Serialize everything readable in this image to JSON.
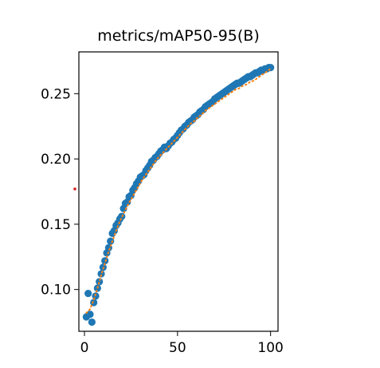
{
  "chart_data": {
    "type": "scatter",
    "title": "metrics/mAP50-95(B)",
    "xlabel": "",
    "ylabel": "",
    "xlim": [
      -3,
      104
    ],
    "ylim": [
      0.068,
      0.282
    ],
    "x_ticks": [
      0,
      50,
      100
    ],
    "y_ticks": [
      0.1,
      0.15,
      0.2,
      0.25
    ],
    "grid": false,
    "legend": "none",
    "colors": {
      "points": "#1f77b4",
      "smooth": "#ff7f0e",
      "marker": "#d62728"
    },
    "series": [
      {
        "style": "markers",
        "x": [
          1,
          2,
          3,
          4,
          5,
          6,
          7,
          8,
          9,
          10,
          11,
          12,
          13,
          14,
          15,
          16,
          17,
          18,
          19,
          20,
          21,
          22,
          23,
          24,
          25,
          26,
          27,
          28,
          29,
          30,
          31,
          32,
          33,
          34,
          35,
          36,
          37,
          38,
          39,
          40,
          41,
          42,
          43,
          44,
          45,
          46,
          47,
          48,
          49,
          50,
          51,
          52,
          53,
          54,
          55,
          56,
          57,
          58,
          59,
          60,
          61,
          62,
          63,
          64,
          65,
          66,
          67,
          68,
          69,
          70,
          71,
          72,
          73,
          74,
          75,
          76,
          77,
          78,
          79,
          80,
          81,
          82,
          83,
          84,
          85,
          86,
          87,
          88,
          89,
          90,
          91,
          92,
          93,
          94,
          95,
          96,
          97,
          98,
          99,
          100
        ],
        "y": [
          0.079,
          0.097,
          0.081,
          0.075,
          0.09,
          0.095,
          0.101,
          0.106,
          0.112,
          0.117,
          0.122,
          0.128,
          0.132,
          0.137,
          0.143,
          0.145,
          0.149,
          0.151,
          0.154,
          0.156,
          0.162,
          0.166,
          0.167,
          0.171,
          0.172,
          0.176,
          0.178,
          0.181,
          0.183,
          0.186,
          0.187,
          0.188,
          0.191,
          0.193,
          0.195,
          0.198,
          0.199,
          0.201,
          0.202,
          0.204,
          0.206,
          0.207,
          0.209,
          0.208,
          0.21,
          0.212,
          0.213,
          0.215,
          0.216,
          0.218,
          0.22,
          0.222,
          0.223,
          0.225,
          0.226,
          0.228,
          0.229,
          0.23,
          0.232,
          0.233,
          0.234,
          0.236,
          0.237,
          0.238,
          0.24,
          0.241,
          0.242,
          0.243,
          0.244,
          0.246,
          0.247,
          0.248,
          0.249,
          0.25,
          0.251,
          0.252,
          0.253,
          0.254,
          0.255,
          0.256,
          0.257,
          0.258,
          0.258,
          0.259,
          0.26,
          0.261,
          0.262,
          0.263,
          0.263,
          0.264,
          0.265,
          0.266,
          0.266,
          0.267,
          0.268,
          0.268,
          0.269,
          0.269,
          0.27,
          0.27
        ]
      },
      {
        "style": "dotted-line",
        "x": [
          1,
          3,
          5,
          7,
          9,
          11,
          13,
          15,
          17,
          19,
          21,
          23,
          25,
          27,
          29,
          31,
          33,
          35,
          37,
          39,
          41,
          43,
          45,
          47,
          49,
          51,
          53,
          55,
          57,
          59,
          61,
          63,
          65,
          67,
          69,
          71,
          73,
          75,
          77,
          79,
          81,
          83,
          85,
          87,
          89,
          91,
          93,
          95,
          97,
          99,
          100
        ],
        "y": [
          0.082,
          0.085,
          0.092,
          0.101,
          0.111,
          0.12,
          0.129,
          0.137,
          0.145,
          0.152,
          0.158,
          0.164,
          0.169,
          0.174,
          0.179,
          0.184,
          0.188,
          0.192,
          0.196,
          0.2,
          0.203,
          0.206,
          0.209,
          0.212,
          0.215,
          0.218,
          0.221,
          0.224,
          0.227,
          0.229,
          0.232,
          0.234,
          0.237,
          0.239,
          0.241,
          0.243,
          0.245,
          0.247,
          0.249,
          0.251,
          0.253,
          0.254,
          0.256,
          0.257,
          0.259,
          0.26,
          0.262,
          0.264,
          0.266,
          0.268,
          0.269
        ]
      }
    ],
    "marker_point": {
      "x": -3,
      "y": 0.177
    }
  }
}
